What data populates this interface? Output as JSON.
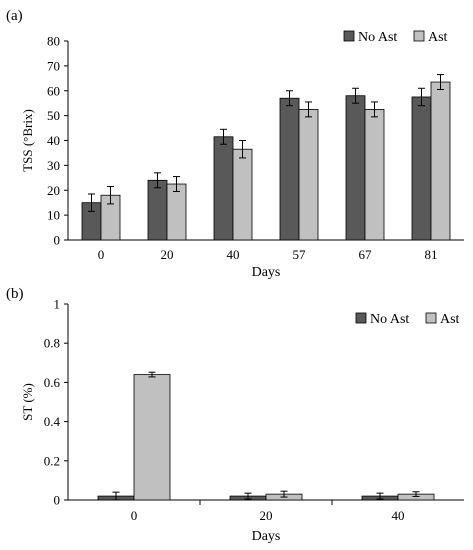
{
  "chart_data": [
    {
      "panel_label": "(a)",
      "type": "bar",
      "categories": [
        "0",
        "20",
        "40",
        "57",
        "67",
        "81"
      ],
      "series": [
        {
          "name": "No Ast",
          "color": "#595959",
          "values": [
            15,
            24,
            41.5,
            57,
            58,
            57.5
          ],
          "errors": [
            3.5,
            3,
            3,
            3,
            3,
            3.5
          ]
        },
        {
          "name": "Ast",
          "color": "#c0c0c0",
          "values": [
            18,
            22.5,
            36.5,
            52.5,
            52.5,
            63.5
          ],
          "errors": [
            3.5,
            3,
            3.5,
            3,
            3,
            3
          ]
        }
      ],
      "xlabel": "Days",
      "ylabel": "TSS (°Brix)",
      "ylim": [
        0,
        80
      ],
      "yticks": [
        "0",
        "10",
        "20",
        "30",
        "40",
        "50",
        "60",
        "70",
        "80"
      ],
      "legend_position": "top-right",
      "grid": false
    },
    {
      "panel_label": "(b)",
      "type": "bar",
      "categories": [
        "0",
        "20",
        "40"
      ],
      "series": [
        {
          "name": "No Ast",
          "color": "#595959",
          "values": [
            0.02,
            0.02,
            0.02
          ],
          "errors": [
            0.02,
            0.015,
            0.015
          ]
        },
        {
          "name": "Ast",
          "color": "#c0c0c0",
          "values": [
            0.64,
            0.03,
            0.03
          ],
          "errors": [
            0.012,
            0.015,
            0.012
          ]
        }
      ],
      "xlabel": "Days",
      "ylabel": "ST (%)",
      "ylim": [
        0,
        1
      ],
      "yticks": [
        "0",
        "0.2",
        "0.4",
        "0.6",
        "0.8",
        "1"
      ],
      "legend_position": "top-right",
      "grid": false
    }
  ]
}
